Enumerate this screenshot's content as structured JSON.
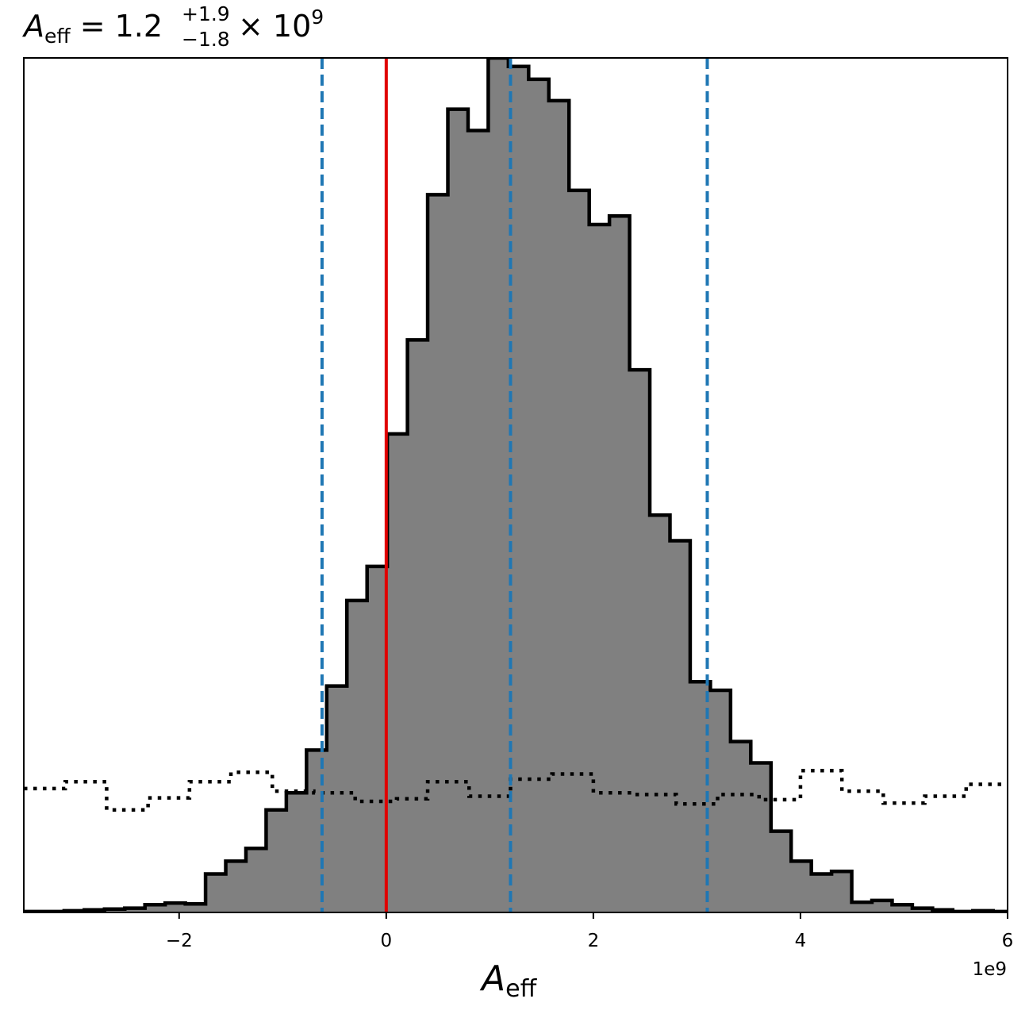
{
  "chart_data": {
    "type": "histogram",
    "title": {
      "symbol": "A",
      "symbol_subscript": "eff",
      "equals_value": " = 1.2",
      "upper_error": "+1.9",
      "lower_error": "−1.8",
      "multiplier": " × 10",
      "exponent": "9"
    },
    "xlabel": {
      "symbol": "A",
      "subscript": "eff"
    },
    "x_offset_label": "1e9",
    "xlim": [
      -3.5,
      6.0
    ],
    "xticks": [
      -2,
      0,
      2,
      4,
      6
    ],
    "xtick_labels": [
      "−2",
      "0",
      "2",
      "4",
      "6"
    ],
    "yticks_visible": false,
    "posterior": {
      "fill_color": "#808080",
      "edge_color": "#000000",
      "bin_edges": [
        -3.5,
        -3.305,
        -3.11,
        -2.915,
        -2.72,
        -2.525,
        -2.33,
        -2.135,
        -1.94,
        -1.745,
        -1.55,
        -1.355,
        -1.16,
        -0.965,
        -0.77,
        -0.575,
        -0.38,
        -0.185,
        0.01,
        0.205,
        0.4,
        0.595,
        0.79,
        0.985,
        1.18,
        1.375,
        1.57,
        1.765,
        1.96,
        2.155,
        2.35,
        2.545,
        2.74,
        2.935,
        3.13,
        3.325,
        3.52,
        3.715,
        3.91,
        4.105,
        4.3,
        4.495,
        4.69,
        4.885,
        5.08,
        5.275,
        5.47,
        5.665,
        5.86,
        6.0
      ],
      "counts": [
        0.1,
        0.1,
        0.2,
        0.3,
        0.4,
        0.5,
        0.9,
        1.1,
        1.0,
        4.5,
        6.0,
        7.5,
        12.0,
        14.0,
        19.0,
        26.5,
        36.5,
        40.5,
        56.0,
        67.0,
        84.0,
        94.0,
        91.5,
        100.0,
        99.0,
        97.5,
        95.0,
        84.5,
        80.5,
        81.5,
        63.5,
        46.5,
        43.5,
        27.0,
        26.0,
        20.0,
        17.5,
        9.5,
        6.0,
        4.5,
        4.8,
        1.2,
        1.4,
        0.9,
        0.5,
        0.3,
        0.1,
        0.2,
        0.1
      ]
    },
    "prior": {
      "line_style": "dotted",
      "color": "#000000",
      "bin_edges": [
        -3.5,
        -3.1,
        -2.7,
        -2.3,
        -1.9,
        -1.5,
        -1.1,
        -0.7,
        -0.3,
        0.1,
        0.4,
        0.8,
        1.2,
        1.6,
        2.0,
        2.4,
        2.8,
        3.2,
        3.6,
        4.0,
        4.4,
        4.8,
        5.2,
        5.6,
        6.0
      ],
      "counts": [
        14.5,
        15.3,
        12.0,
        13.4,
        15.3,
        16.4,
        14.2,
        14.0,
        13.0,
        13.3,
        15.3,
        13.6,
        15.6,
        16.2,
        14.0,
        13.8,
        12.7,
        13.8,
        13.2,
        16.6,
        14.2,
        12.8,
        13.6,
        15.0
      ]
    },
    "vertical_lines": [
      {
        "x": -0.62,
        "color": "#1f77b4",
        "style": "dashed"
      },
      {
        "x": 0.0,
        "color": "#e00000",
        "style": "solid"
      },
      {
        "x": 1.2,
        "color": "#1f77b4",
        "style": "dashed"
      },
      {
        "x": 3.1,
        "color": "#1f77b4",
        "style": "dashed"
      }
    ],
    "ylim": [
      0,
      100
    ]
  }
}
